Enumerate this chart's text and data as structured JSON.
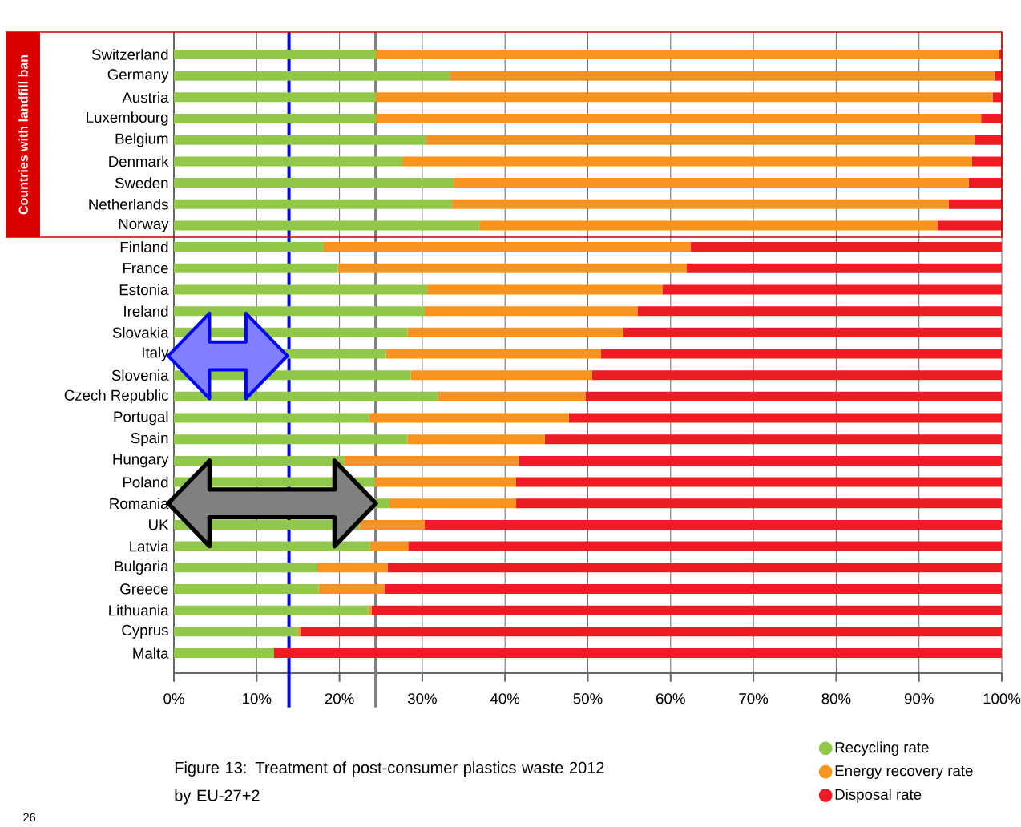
{
  "chart_data": {
    "type": "bar",
    "orientation": "horizontal",
    "stacked": true,
    "title": "Figure 13: Treatment of post-consumer plastics waste 2012 by EU-27+2",
    "categories": [
      "Switzerland",
      "Germany",
      "Austria",
      "Luxembourg",
      "Belgium",
      "Denmark",
      "Sweden",
      "Netherlands",
      "Norway",
      "Finland",
      "France",
      "Estonia",
      "Ireland",
      "Slovakia",
      "Italy",
      "Slovenia",
      "Czech Republic",
      "Portugal",
      "Spain",
      "Hungary",
      "Poland",
      "Romania",
      "UK",
      "Latvia",
      "Bulgaria",
      "Greece",
      "Lithuania",
      "Cyprus",
      "Malta"
    ],
    "series": [
      {
        "name": "Recycling rate",
        "color": "#92c84a",
        "values": [
          24.4,
          33.4,
          24.4,
          24.4,
          30.5,
          27.6,
          33.8,
          33.6,
          36.9,
          18.1,
          19.8,
          30.6,
          30.3,
          28.2,
          25.6,
          28.6,
          31.9,
          23.6,
          28.2,
          20.6,
          24.3,
          26.0,
          22.4,
          23.7,
          17.3,
          17.5,
          23.5,
          15.0,
          12.1
        ]
      },
      {
        "name": "Energy recovery rate",
        "color": "#f7931e",
        "values": [
          75.3,
          65.7,
          74.5,
          73.1,
          66.2,
          68.8,
          62.2,
          60.0,
          55.3,
          44.3,
          42.1,
          28.4,
          25.7,
          26.1,
          26.0,
          21.9,
          17.8,
          24.1,
          16.6,
          21.1,
          17.0,
          15.3,
          7.9,
          4.6,
          8.5,
          7.9,
          0.4,
          0.3,
          0
        ]
      },
      {
        "name": "Disposal rate",
        "color": "#ed1c24",
        "values": [
          0.3,
          0.9,
          1.1,
          2.5,
          3.3,
          3.6,
          4.0,
          6.4,
          7.8,
          37.6,
          38.1,
          41.0,
          44.0,
          45.7,
          48.4,
          49.5,
          50.3,
          52.3,
          55.2,
          58.3,
          58.7,
          58.7,
          69.7,
          71.7,
          74.2,
          74.6,
          76.1,
          84.7,
          87.9
        ]
      }
    ],
    "xlim": [
      0,
      100
    ],
    "xticks": [
      {
        "value": 0,
        "label": "0%"
      },
      {
        "value": 10,
        "label": "10%"
      },
      {
        "value": 20,
        "label": "20%"
      },
      {
        "value": 30,
        "label": "30%"
      },
      {
        "value": 40,
        "label": "40%"
      },
      {
        "value": 50,
        "label": "50%"
      },
      {
        "value": 60,
        "label": "60%"
      },
      {
        "value": 70,
        "label": "70%"
      },
      {
        "value": 80,
        "label": "80%"
      },
      {
        "value": 90,
        "label": "90%"
      },
      {
        "value": 100,
        "label": "100%"
      }
    ],
    "grid": "x",
    "legend": "bottom right",
    "ref_lines": [
      {
        "axis": "x",
        "value": 13.9,
        "color": "#0000ff"
      },
      {
        "axis": "x",
        "value": 24.4,
        "color": "#808080"
      }
    ],
    "annotations": [
      "Countries with landfill ban",
      "26"
    ]
  }
}
